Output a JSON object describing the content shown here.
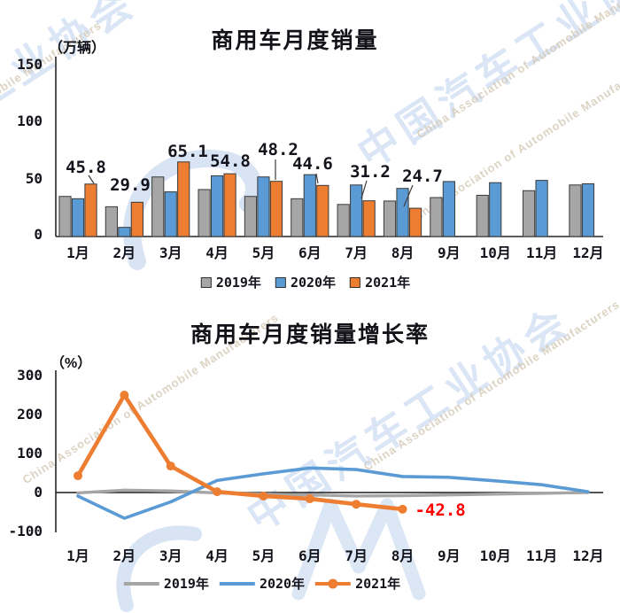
{
  "watermark": {
    "cn": "中国汽车工业协会",
    "en": "China Association of Automobile Manufacturers"
  },
  "chart_data": [
    {
      "type": "bar",
      "title": "商用车月度销量",
      "unit_label": "（万辆）",
      "ylabel": "万辆",
      "categories": [
        "1月",
        "2月",
        "3月",
        "4月",
        "5月",
        "6月",
        "7月",
        "8月",
        "9月",
        "10月",
        "11月",
        "12月"
      ],
      "series": [
        {
          "name": "2019年",
          "color": "#a6a6a6",
          "values": [
            35,
            26,
            52,
            41,
            35,
            33,
            28,
            31,
            34,
            36,
            40,
            45
          ]
        },
        {
          "name": "2020年",
          "color": "#5b9bd5",
          "values": [
            33,
            8,
            39,
            53,
            52,
            54,
            45,
            42,
            48,
            47,
            49,
            46
          ]
        },
        {
          "name": "2021年",
          "color": "#ed7d31",
          "values": [
            45.8,
            29.9,
            65.1,
            54.8,
            48.2,
            44.6,
            31.2,
            24.7
          ],
          "data_labels": [
            "45.8",
            "29.9",
            "65.1",
            "54.8",
            "48.2",
            "44.6",
            "31.2",
            "24.7"
          ]
        }
      ],
      "ylim": [
        0,
        150
      ],
      "y_ticks": [
        0,
        50,
        100,
        150
      ],
      "grid": false,
      "legend_position": "bottom"
    },
    {
      "type": "line",
      "title": "商用车月度销量增长率",
      "unit_label": "（%）",
      "ylabel": "%",
      "categories": [
        "1月",
        "2月",
        "3月",
        "4月",
        "5月",
        "6月",
        "7月",
        "8月",
        "9月",
        "10月",
        "11月",
        "12月"
      ],
      "series": [
        {
          "name": "2019年",
          "color": "#a5a5a5",
          "values": [
            -1,
            6,
            4,
            -1,
            -4,
            -6,
            -9,
            -8,
            -6,
            -4,
            -2,
            0
          ]
        },
        {
          "name": "2020年",
          "color": "#5b9bd5",
          "values": [
            -9,
            -66,
            -24,
            31,
            48,
            63,
            59,
            41,
            39,
            30,
            20,
            2
          ]
        },
        {
          "name": "2021年",
          "color": "#ed7d31",
          "marker": "circle",
          "values": [
            43,
            250,
            68,
            2,
            -9,
            -16,
            -30,
            -42.8
          ],
          "annotation": {
            "text": "-42.8",
            "color": "#ff0000",
            "month_index": 7
          }
        }
      ],
      "ylim": [
        -100,
        300
      ],
      "y_ticks": [
        -100,
        0,
        100,
        200,
        300
      ],
      "grid": false,
      "legend_position": "bottom"
    }
  ]
}
